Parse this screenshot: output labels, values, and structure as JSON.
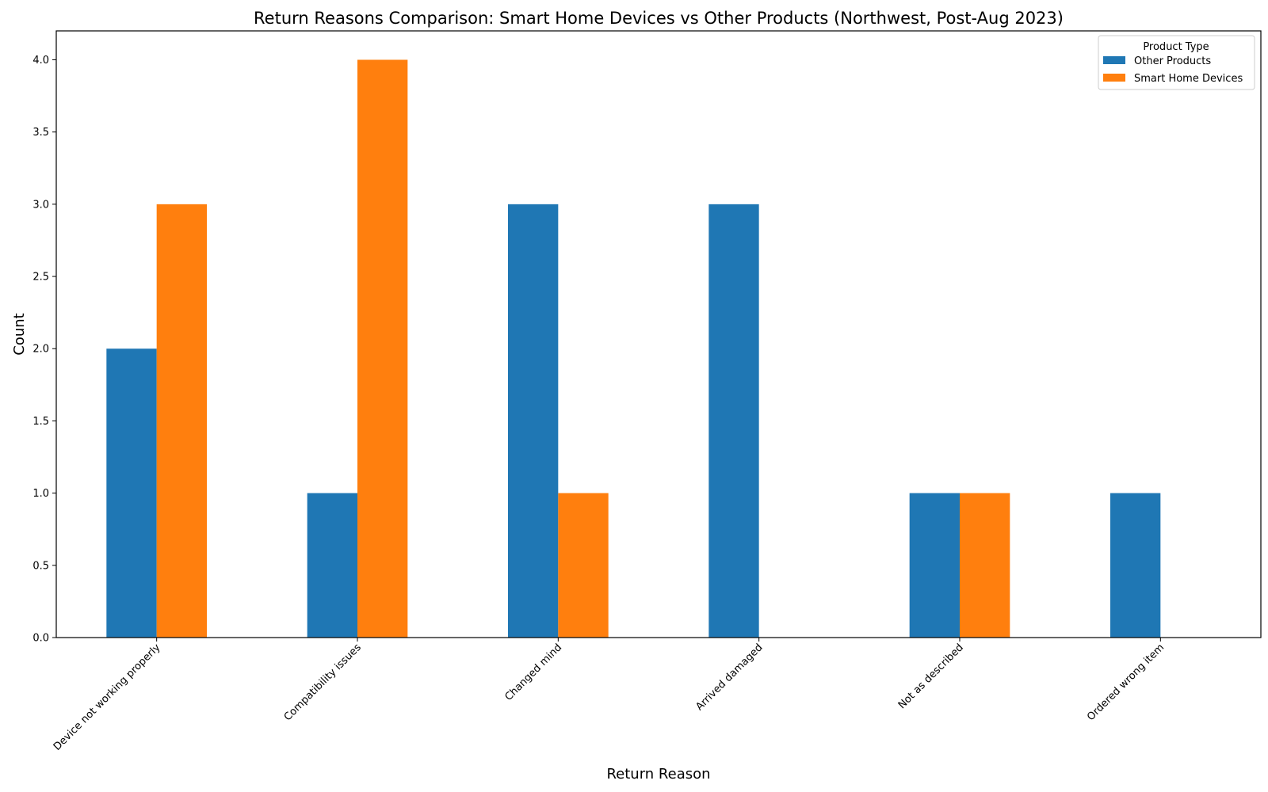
{
  "chart_data": {
    "type": "bar",
    "title": "Return Reasons Comparison: Smart Home Devices vs Other Products (Northwest, Post-Aug 2023)",
    "xlabel": "Return Reason",
    "ylabel": "Count",
    "categories": [
      "Device not working properly",
      "Compatibility issues",
      "Changed mind",
      "Arrived damaged",
      "Not as described",
      "Ordered wrong item"
    ],
    "series": [
      {
        "name": "Other Products",
        "color": "#1f77b4",
        "values": [
          2,
          1,
          3,
          3,
          1,
          1
        ]
      },
      {
        "name": "Smart Home Devices",
        "color": "#ff7f0e",
        "values": [
          3,
          4,
          1,
          0,
          1,
          0
        ]
      }
    ],
    "ylim": [
      0,
      4.2
    ],
    "yticks": [
      "0.0",
      "0.5",
      "1.0",
      "1.5",
      "2.0",
      "2.5",
      "3.0",
      "3.5",
      "4.0"
    ],
    "grid": false,
    "legend": {
      "title": "Product Type",
      "placement": "top-right"
    }
  }
}
